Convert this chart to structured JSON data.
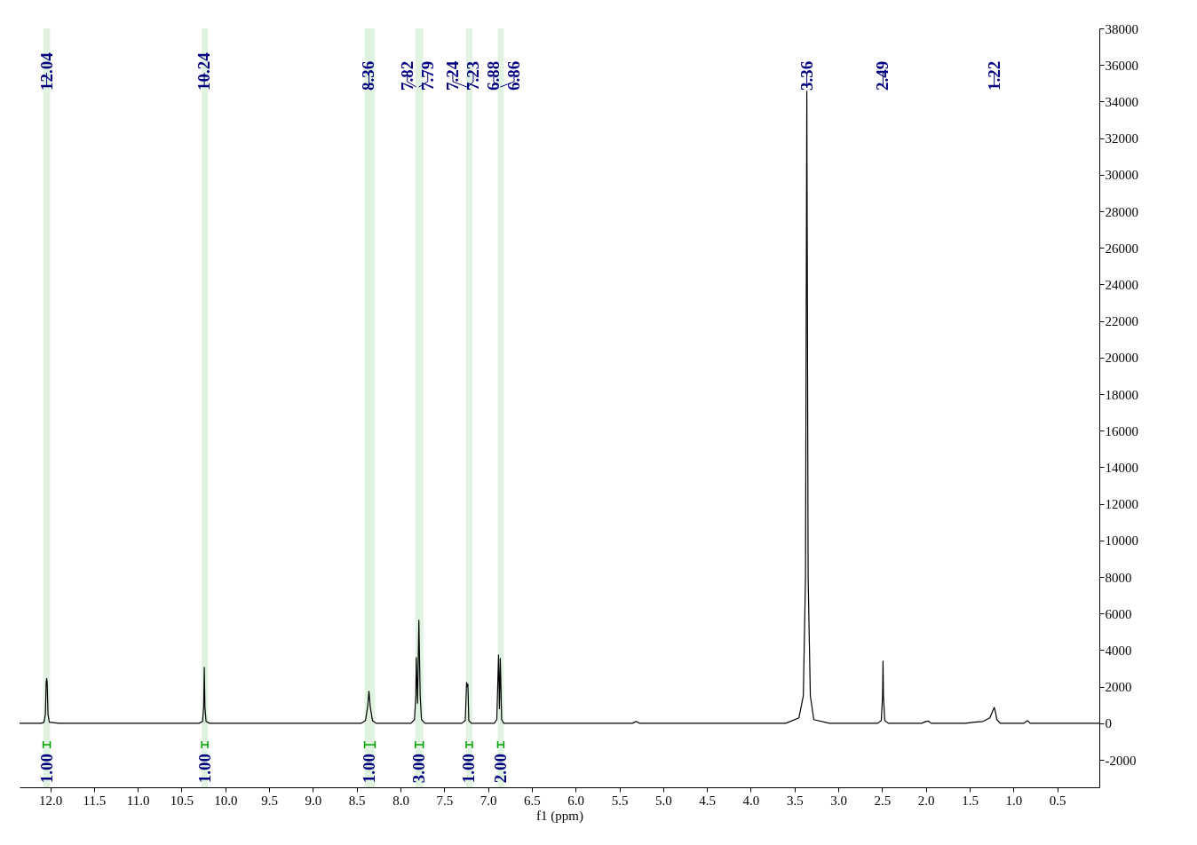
{
  "chart_data": {
    "type": "line",
    "xlabel": "f1 (ppm)",
    "x": [
      12.35,
      12.1,
      12.07,
      12.055,
      12.045,
      12.04,
      12.035,
      12.025,
      12.01,
      11.9,
      10.3,
      10.26,
      10.247,
      10.24,
      10.233,
      10.22,
      10.18,
      8.45,
      8.4,
      8.375,
      8.36,
      8.345,
      8.32,
      8.28,
      7.88,
      7.84,
      7.825,
      7.82,
      7.805,
      7.79,
      7.775,
      7.76,
      7.72,
      7.3,
      7.26,
      7.245,
      7.235,
      7.23,
      7.22,
      7.19,
      6.93,
      6.9,
      6.88,
      6.87,
      6.86,
      6.845,
      6.82,
      5.35,
      5.31,
      5.27,
      3.6,
      3.45,
      3.4,
      3.375,
      3.36,
      3.345,
      3.32,
      3.28,
      3.1,
      2.55,
      2.51,
      2.495,
      2.49,
      2.485,
      2.47,
      2.43,
      2.05,
      2.0,
      1.97,
      1.94,
      1.55,
      1.45,
      1.35,
      1.27,
      1.235,
      1.22,
      1.205,
      1.19,
      1.15,
      0.88,
      0.84,
      0.81,
      0.02
    ],
    "series": [
      {
        "color": "#000000",
        "values": [
          0,
          0,
          60,
          500,
          2300,
          2450,
          2300,
          500,
          60,
          0,
          0,
          100,
          900,
          3060,
          900,
          100,
          0,
          0,
          150,
          900,
          1750,
          900,
          150,
          0,
          0,
          200,
          1500,
          3590,
          1100,
          5630,
          1500,
          200,
          0,
          0,
          150,
          2230,
          2000,
          2140,
          150,
          0,
          0,
          200,
          3740,
          800,
          3540,
          200,
          0,
          0,
          100,
          0,
          0,
          300,
          1500,
          8000,
          34560,
          8000,
          1500,
          200,
          0,
          0,
          150,
          1500,
          3400,
          1500,
          150,
          0,
          0,
          100,
          120,
          0,
          0,
          60,
          100,
          300,
          700,
          870,
          600,
          200,
          0,
          0,
          150,
          0,
          0
        ]
      }
    ],
    "xlim": [
      12.35,
      0.02
    ],
    "xticks": [
      {
        "value": 12,
        "label": "12.0"
      },
      11.5,
      {
        "value": 11,
        "label": "11.0"
      },
      10.5,
      {
        "value": 10,
        "label": "10.0"
      },
      9.5,
      {
        "value": 9,
        "label": "9.0"
      },
      8.5,
      {
        "value": 8,
        "label": "8.0"
      },
      7.5,
      {
        "value": 7,
        "label": "7.0"
      },
      6.5,
      {
        "value": 6,
        "label": "6.0"
      },
      5.5,
      {
        "value": 5,
        "label": "5.0"
      },
      4.5,
      {
        "value": 4,
        "label": "4.0"
      },
      3.5,
      {
        "value": 3,
        "label": "3.0"
      },
      2.5,
      {
        "value": 2,
        "label": "2.0"
      },
      1.5,
      {
        "value": 1,
        "label": "1.0"
      },
      0.5
    ],
    "ylim": [
      -3500,
      38000
    ],
    "yticks": [
      -2000,
      0,
      2000,
      4000,
      6000,
      8000,
      10000,
      12000,
      14000,
      16000,
      18000,
      20000,
      22000,
      24000,
      26000,
      28000,
      30000,
      32000,
      34000,
      36000,
      38000
    ],
    "grid": false,
    "annotations": [
      "12.04",
      "10.24",
      "8.36",
      "7.82",
      "7.79",
      "7.24",
      "7.23",
      "6.88",
      "6.86",
      "3.36",
      "2.49",
      "1.22"
    ],
    "bands": [
      {
        "axis": "x",
        "from": 12.08,
        "to": 12.0,
        "label": "1.00",
        "color": "#00a000"
      },
      {
        "axis": "x",
        "from": 10.27,
        "to": 10.2,
        "label": "1.00",
        "color": "#00a000"
      },
      {
        "axis": "x",
        "from": 8.41,
        "to": 8.29,
        "label": "1.00",
        "color": "#00a000"
      },
      {
        "axis": "x",
        "from": 7.83,
        "to": 7.74,
        "label": "3.00",
        "color": "#00a000"
      },
      {
        "axis": "x",
        "from": 7.25,
        "to": 7.18,
        "label": "1.00",
        "color": "#00a000"
      },
      {
        "axis": "x",
        "from": 6.89,
        "to": 6.82,
        "label": "2.00",
        "color": "#00a000"
      }
    ]
  }
}
